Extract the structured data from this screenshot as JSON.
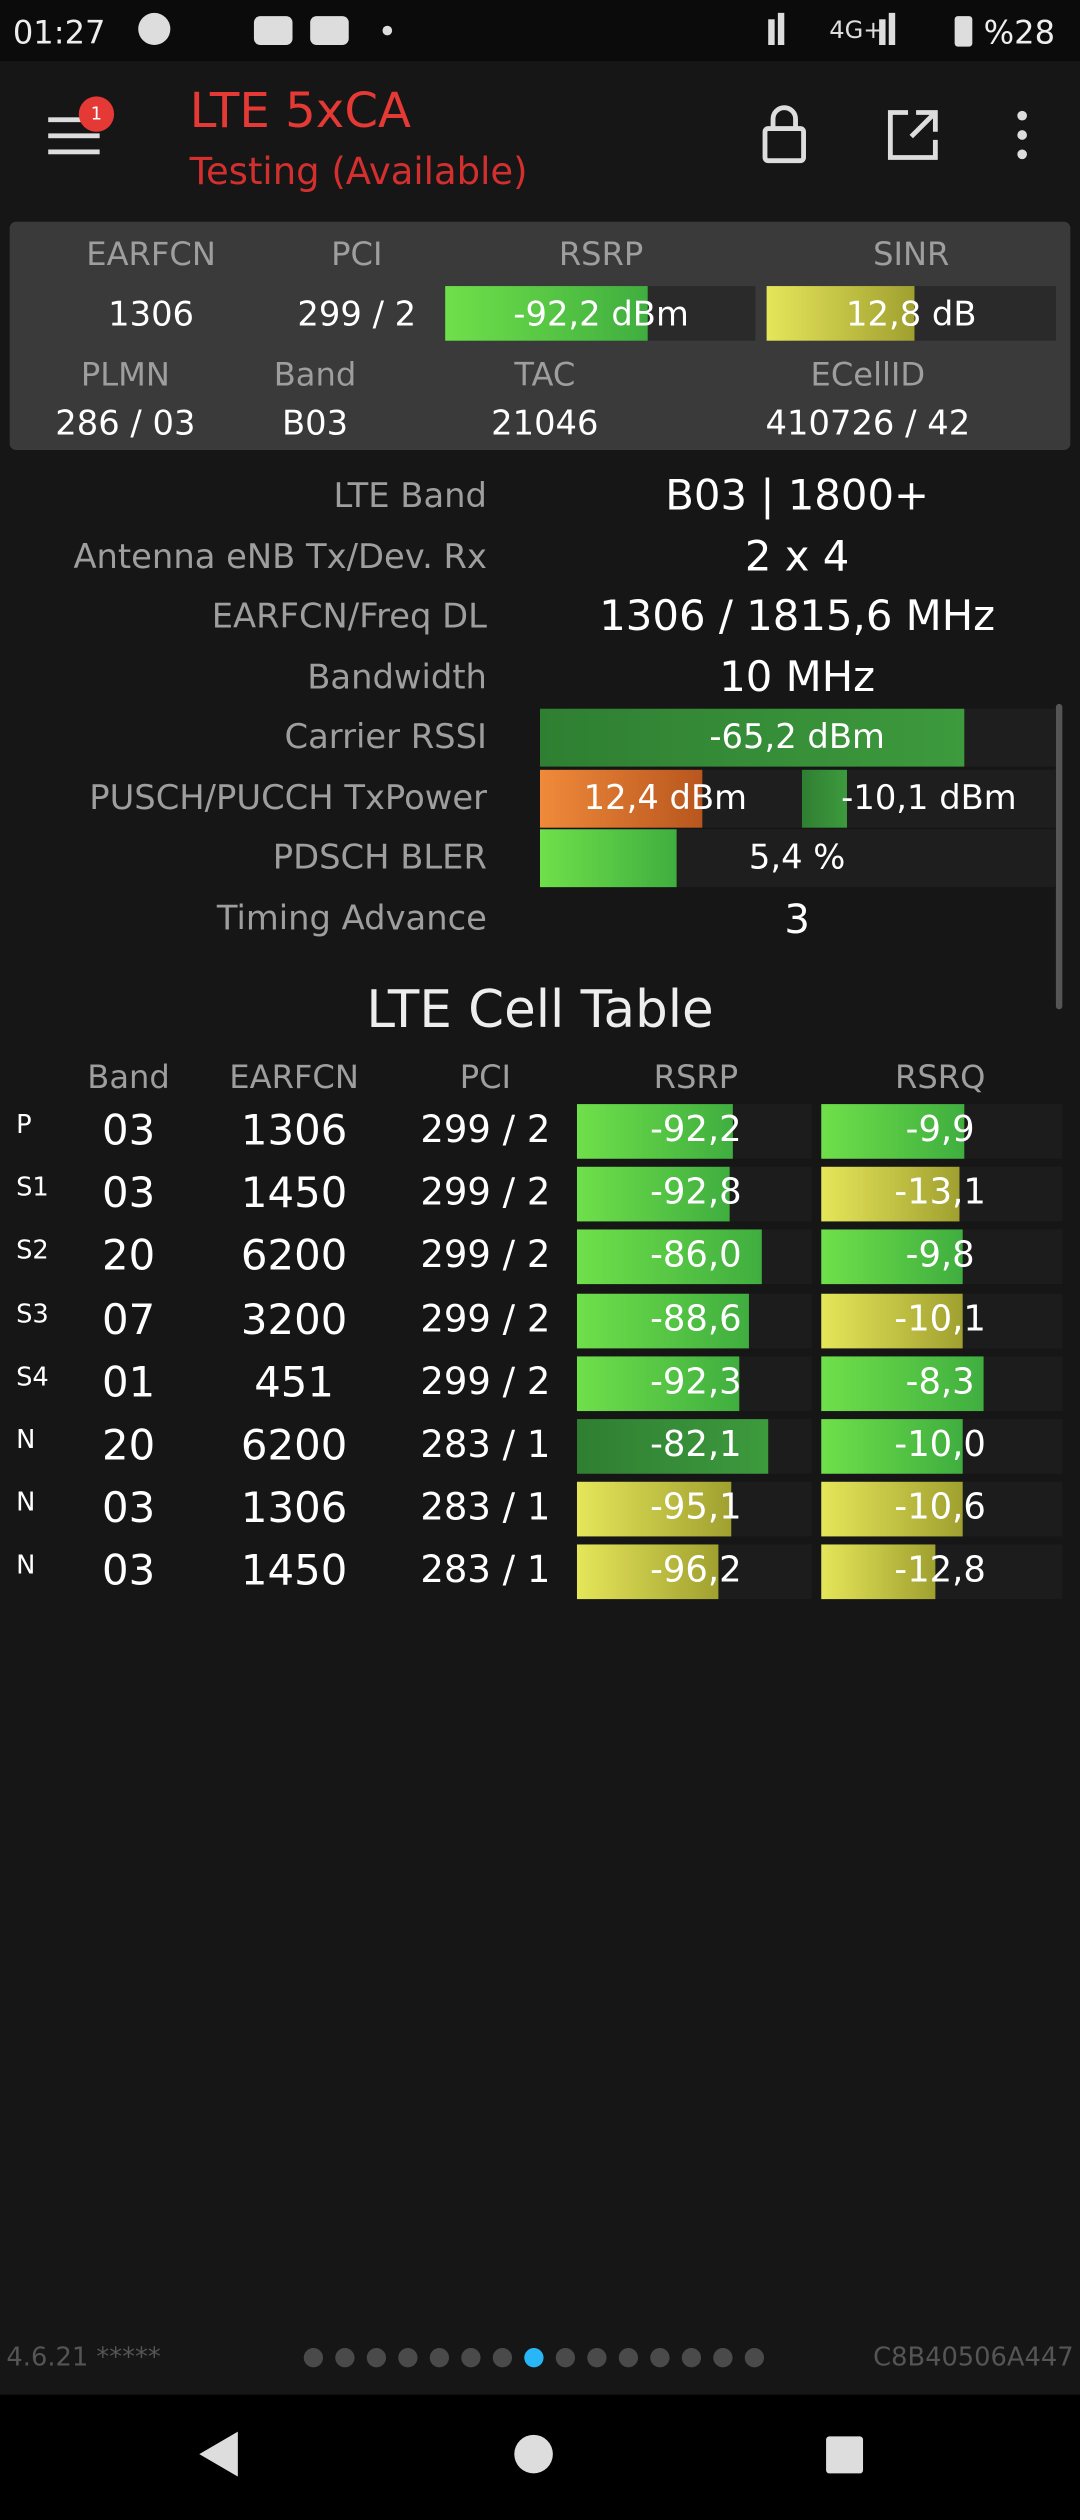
{
  "status_bar": {
    "time": "01:27",
    "network": "4G+",
    "battery": "%28"
  },
  "header": {
    "title": "LTE 5xCA",
    "subtitle": "Testing (Available)",
    "badge": "1"
  },
  "summary": {
    "labels": [
      "EARFCN",
      "PCI",
      "RSRP",
      "SINR"
    ],
    "values": [
      "1306",
      "299 / 2",
      "-92,2 dBm",
      "12,8 dB"
    ],
    "labels2": [
      "PLMN",
      "Band",
      "TAC",
      "ECellID"
    ],
    "values2": [
      "286 / 03",
      "B03",
      "21046",
      "410726 / 42"
    ]
  },
  "details": [
    {
      "label": "LTE Band",
      "values": [
        "B03 | 1800+"
      ]
    },
    {
      "label": "Antenna eNB Tx/Dev. Rx",
      "values": [
        "2 x 4"
      ]
    },
    {
      "label": "EARFCN/Freq DL",
      "values": [
        "1306 / 1815,6 MHz"
      ]
    },
    {
      "label": "Bandwidth",
      "values": [
        "10 MHz"
      ]
    },
    {
      "label": "Carrier RSSI",
      "values": [
        "-65,2 dBm"
      ]
    },
    {
      "label": "PUSCH/PUCCH TxPower",
      "values": [
        "12,4 dBm",
        "-10,1 dBm"
      ]
    },
    {
      "label": "PDSCH BLER",
      "values": [
        "5,4 %"
      ]
    },
    {
      "label": "Timing Advance",
      "values": [
        "3"
      ]
    }
  ],
  "cell_table": {
    "title": "LTE Cell Table",
    "headers": [
      "Band",
      "EARFCN",
      "PCI",
      "RSRP",
      "RSRQ"
    ],
    "rows": [
      [
        "P",
        "03",
        "1306",
        "299 / 2",
        "-92,2",
        "-9,9"
      ],
      [
        "S1",
        "03",
        "1450",
        "299 / 2",
        "-92,8",
        "-13,1"
      ],
      [
        "S2",
        "20",
        "6200",
        "299 / 2",
        "-86,0",
        "-9,8"
      ],
      [
        "S3",
        "07",
        "3200",
        "299 / 2",
        "-88,6",
        "-10,1"
      ],
      [
        "S4",
        "01",
        "451",
        "299 / 2",
        "-92,3",
        "-8,3"
      ],
      [
        "N",
        "20",
        "6200",
        "283 / 1",
        "-82,1",
        "-10,0"
      ],
      [
        "N",
        "03",
        "1306",
        "283 / 1",
        "-95,1",
        "-10,6"
      ],
      [
        "N",
        "03",
        "1450",
        "283 / 1",
        "-96,2",
        "-12,8"
      ]
    ]
  },
  "footer": {
    "version": "4.6.21 *****",
    "device_id": "C8B40506A447"
  }
}
